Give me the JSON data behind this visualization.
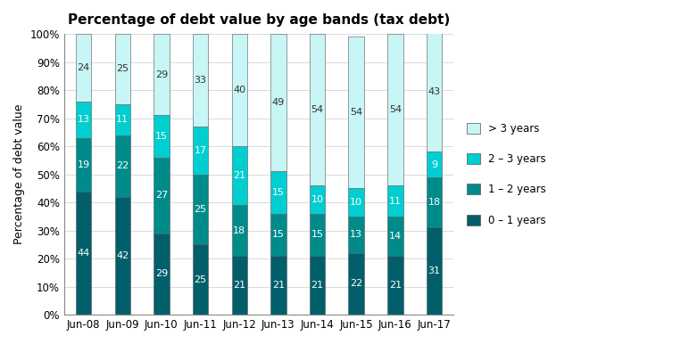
{
  "title": "Percentage of debt value by age bands (tax debt)",
  "ylabel": "Percentage of debt value",
  "categories": [
    "Jun-08",
    "Jun-09",
    "Jun-10",
    "Jun-11",
    "Jun-12",
    "Jun-13",
    "Jun-14",
    "Jun-15",
    "Jun-16",
    "Jun-17"
  ],
  "series": {
    "0 - 1 years": [
      44,
      42,
      29,
      25,
      21,
      21,
      21,
      22,
      21,
      31
    ],
    "1 - 2 years": [
      19,
      22,
      27,
      25,
      18,
      15,
      15,
      13,
      14,
      18
    ],
    "2 - 3 years": [
      13,
      11,
      15,
      17,
      21,
      15,
      10,
      10,
      11,
      9
    ],
    "> 3 years": [
      24,
      25,
      29,
      33,
      40,
      49,
      54,
      54,
      54,
      43
    ]
  },
  "colors": {
    "0 - 1 years": "#005F6B",
    "1 - 2 years": "#008B8B",
    "2 - 3 years": "#00CED1",
    "> 3 years": "#C8F5F5"
  },
  "legend_labels": [
    "> 3 years",
    "2 – 3 years",
    "1 – 2 years",
    "0 – 1 years"
  ],
  "yticks": [
    0,
    10,
    20,
    30,
    40,
    50,
    60,
    70,
    80,
    90,
    100
  ],
  "ytick_labels": [
    "0%",
    "10%",
    "20%",
    "30%",
    "40%",
    "50%",
    "60%",
    "70%",
    "80%",
    "90%",
    "100%"
  ],
  "background_color": "#FFFFFF",
  "bar_width": 0.4
}
